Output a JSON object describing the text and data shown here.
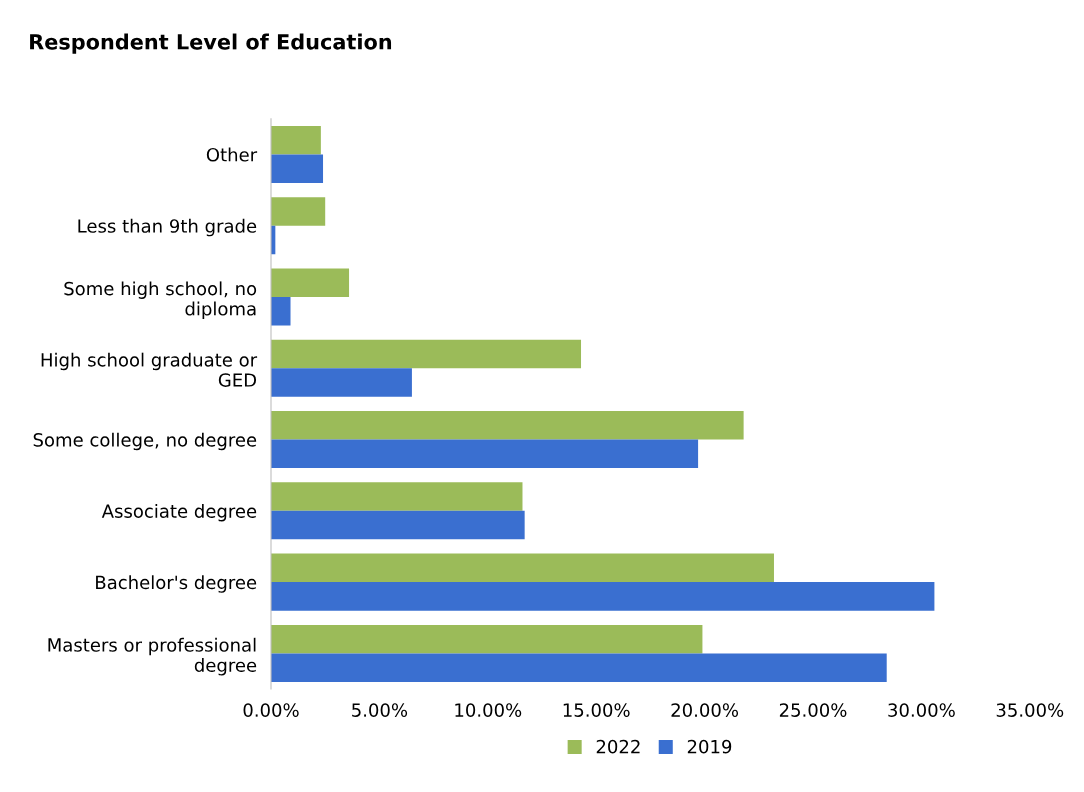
{
  "chart_data": {
    "type": "bar",
    "orientation": "horizontal",
    "title": "Respondent Level of Education",
    "categories": [
      "Other",
      "Less than 9th grade",
      "Some high school, no diploma",
      "High school graduate or GED",
      "Some college, no degree",
      "Associate degree",
      "Bachelor's degree",
      "Masters or professional degree"
    ],
    "series": [
      {
        "name": "2022",
        "color": "#9bbb59",
        "values": [
          2.3,
          2.5,
          3.6,
          14.3,
          21.8,
          11.6,
          23.2,
          19.9
        ]
      },
      {
        "name": "2019",
        "color": "#3a6fd0",
        "values": [
          2.4,
          0.2,
          0.9,
          6.5,
          19.7,
          11.7,
          30.6,
          28.4
        ]
      }
    ],
    "xlim": [
      0,
      35
    ],
    "xticks": [
      {
        "value": 0,
        "label": "0.00%"
      },
      {
        "value": 5,
        "label": "5.00%"
      },
      {
        "value": 10,
        "label": "10.00%"
      },
      {
        "value": 15,
        "label": "15.00%"
      },
      {
        "value": 20,
        "label": "20.00%"
      },
      {
        "value": 25,
        "label": "25.00%"
      },
      {
        "value": 30,
        "label": "30.00%"
      },
      {
        "value": 35,
        "label": "35.00%"
      }
    ],
    "legend": "bottom",
    "grid": false
  }
}
